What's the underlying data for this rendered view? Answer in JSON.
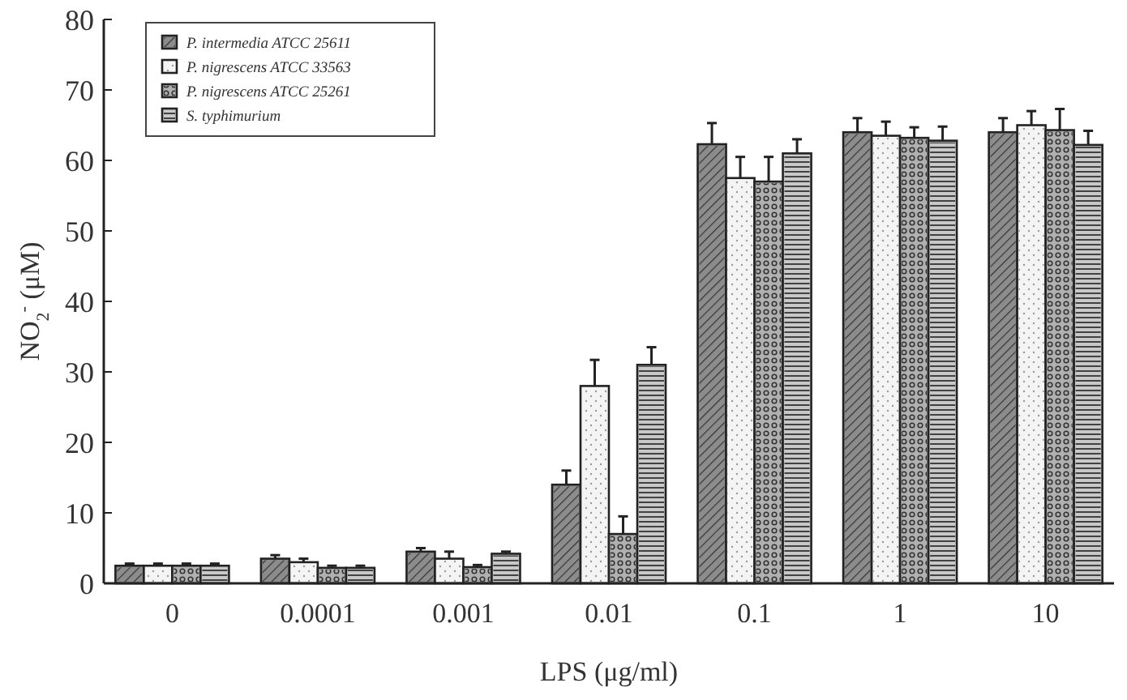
{
  "chart_data": {
    "type": "bar",
    "xlabel": "LPS (μg/ml)",
    "ylabel": "NO$_{2}$$^{-}$ (μM)",
    "categories": [
      "0",
      "0.0001",
      "0.001",
      "0.01",
      "0.1",
      "1",
      "10"
    ],
    "ylim": [
      0,
      80
    ],
    "yticks": [
      0,
      10,
      20,
      30,
      40,
      50,
      60,
      70,
      80
    ],
    "legend": "top left",
    "grid": false,
    "series": [
      {
        "name": "P. intermedia ATCC 25611",
        "color": "#8c8c8c",
        "values": [
          2.5,
          3.5,
          4.5,
          14,
          62.3,
          64,
          64
        ],
        "errors": [
          0.3,
          0.5,
          0.5,
          2,
          3,
          2,
          2
        ]
      },
      {
        "name": "P. nigrescens ATCC 33563",
        "color": "#f4f4f4",
        "values": [
          2.5,
          3,
          3.5,
          28,
          57.5,
          63.5,
          65
        ],
        "errors": [
          0.3,
          0.5,
          1,
          3.7,
          3,
          2,
          2
        ]
      },
      {
        "name": "P. nigrescens ATCC 25261",
        "color": "#b0b0b0",
        "values": [
          2.5,
          2.2,
          2.3,
          7,
          57,
          63.2,
          64.3
        ],
        "errors": [
          0.3,
          0.3,
          0.3,
          2.5,
          3.5,
          1.5,
          3
        ]
      },
      {
        "name": "S. typhimurium",
        "color": "#c8c8c8",
        "values": [
          2.5,
          2.2,
          4.2,
          31,
          61,
          62.8,
          62.2
        ],
        "errors": [
          0.3,
          0.3,
          0.3,
          2.5,
          2,
          2,
          2
        ]
      }
    ]
  }
}
